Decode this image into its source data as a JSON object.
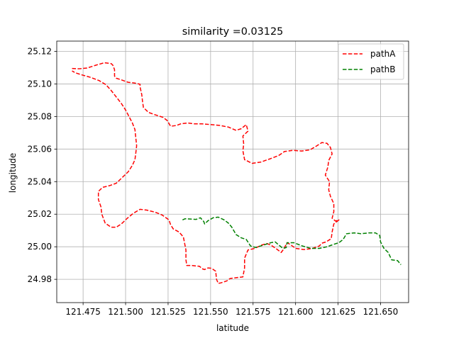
{
  "chart_data": {
    "type": "line",
    "title": "similarity =0.03125",
    "xlabel": "latitude",
    "ylabel": "longitude",
    "xlim": [
      121.4595,
      121.6665
    ],
    "ylim": [
      24.9657,
      25.1263
    ],
    "x_ticks": [
      121.475,
      121.5,
      121.525,
      121.55,
      121.575,
      121.6,
      121.625,
      121.65
    ],
    "x_tick_labels": [
      "121.475",
      "121.500",
      "121.525",
      "121.550",
      "121.575",
      "121.600",
      "121.625",
      "121.650"
    ],
    "y_ticks": [
      24.98,
      25.0,
      25.02,
      25.04,
      25.06,
      25.08,
      25.1,
      25.12
    ],
    "y_tick_labels": [
      "24.98",
      "25.00",
      "25.02",
      "25.04",
      "25.06",
      "25.08",
      "25.10",
      "25.12"
    ],
    "grid": true,
    "legend_position": "upper right",
    "series": [
      {
        "name": "pathA",
        "color": "#ff0000",
        "style": "dashed",
        "points": [
          [
            121.4685,
            25.1095
          ],
          [
            121.4725,
            25.1093
          ],
          [
            121.4775,
            25.1098
          ],
          [
            121.4825,
            25.1115
          ],
          [
            121.4875,
            25.113
          ],
          [
            121.4915,
            25.1125
          ],
          [
            121.4925,
            25.1115
          ],
          [
            121.4935,
            25.1088
          ],
          [
            121.4935,
            25.1048
          ],
          [
            121.4945,
            25.1035
          ],
          [
            121.4975,
            25.1025
          ],
          [
            121.5015,
            25.101
          ],
          [
            121.5055,
            25.1005
          ],
          [
            121.5085,
            25.0998
          ],
          [
            121.5085,
            25.0982
          ],
          [
            121.5095,
            25.0935
          ],
          [
            121.51,
            25.089
          ],
          [
            121.5105,
            25.0855
          ],
          [
            121.5135,
            25.0825
          ],
          [
            121.5175,
            25.081
          ],
          [
            121.522,
            25.0795
          ],
          [
            121.5245,
            25.0775
          ],
          [
            121.5265,
            25.074
          ],
          [
            121.53,
            25.0745
          ],
          [
            121.5325,
            25.0755
          ],
          [
            121.5365,
            25.076
          ],
          [
            121.5405,
            25.0755
          ],
          [
            121.545,
            25.0755
          ],
          [
            121.5505,
            25.075
          ],
          [
            121.5555,
            25.0745
          ],
          [
            121.5605,
            25.0735
          ],
          [
            121.565,
            25.0715
          ],
          [
            121.568,
            25.0725
          ],
          [
            121.571,
            25.075
          ],
          [
            121.572,
            25.071
          ],
          [
            121.569,
            25.068
          ],
          [
            121.5695,
            25.063
          ],
          [
            121.569,
            25.059
          ],
          [
            121.57,
            25.0535
          ],
          [
            121.5745,
            25.0512
          ],
          [
            121.5795,
            25.052
          ],
          [
            121.585,
            25.054
          ],
          [
            121.59,
            25.056
          ],
          [
            121.5935,
            25.0585
          ],
          [
            121.5985,
            25.0592
          ],
          [
            121.6035,
            25.0588
          ],
          [
            121.6085,
            25.0595
          ],
          [
            121.6125,
            25.062
          ],
          [
            121.6155,
            25.064
          ],
          [
            121.6185,
            25.0635
          ],
          [
            121.6205,
            25.061
          ],
          [
            121.6215,
            25.057
          ],
          [
            121.6195,
            25.053
          ],
          [
            121.619,
            25.049
          ],
          [
            121.6175,
            25.044
          ],
          [
            121.62,
            25.04
          ],
          [
            121.6195,
            25.035
          ],
          [
            121.6205,
            25.031
          ],
          [
            121.6225,
            25.0265
          ],
          [
            121.6225,
            25.0215
          ],
          [
            121.6215,
            25.0175
          ],
          [
            121.6235,
            25.0158
          ],
          [
            121.6255,
            25.0165
          ],
          [
            121.6225,
            25.014
          ],
          [
            121.6215,
            25.009
          ],
          [
            121.621,
            25.005
          ],
          [
            121.618,
            25.003
          ],
          [
            121.6155,
            25.0022
          ],
          [
            121.614,
            25.0005
          ],
          [
            121.61,
            24.999
          ],
          [
            121.605,
            24.9983
          ],
          [
            121.6,
            24.999
          ],
          [
            121.597,
            25.0013
          ],
          [
            121.595,
            25.0025
          ],
          [
            121.593,
            24.9985
          ],
          [
            121.5915,
            24.9965
          ],
          [
            121.589,
            24.9985
          ],
          [
            121.5855,
            25.001
          ],
          [
            121.583,
            25.002
          ],
          [
            121.58,
            25.001
          ],
          [
            121.576,
            24.999
          ],
          [
            121.572,
            24.998
          ],
          [
            121.57,
            24.993
          ],
          [
            121.57,
            24.987
          ],
          [
            121.569,
            24.9815
          ],
          [
            121.565,
            24.981
          ],
          [
            121.5615,
            24.9805
          ],
          [
            121.5595,
            24.979
          ],
          [
            121.556,
            24.9778
          ],
          [
            121.5545,
            24.9775
          ],
          [
            121.5535,
            24.98
          ],
          [
            121.553,
            24.985
          ],
          [
            121.5505,
            24.9868
          ],
          [
            121.5485,
            24.987
          ],
          [
            121.5465,
            24.986
          ],
          [
            121.545,
            24.9865
          ],
          [
            121.5435,
            24.988
          ],
          [
            121.539,
            24.9885
          ],
          [
            121.536,
            24.9885
          ],
          [
            121.5355,
            24.992
          ],
          [
            121.5355,
            24.998
          ],
          [
            121.534,
            25.006
          ],
          [
            121.5315,
            25.009
          ],
          [
            121.528,
            25.011
          ],
          [
            121.5265,
            25.0135
          ],
          [
            121.5255,
            25.0165
          ],
          [
            121.5215,
            25.0195
          ],
          [
            121.5175,
            25.0212
          ],
          [
            121.5125,
            25.0225
          ],
          [
            121.5085,
            25.023
          ],
          [
            121.5045,
            25.0205
          ],
          [
            121.501,
            25.0175
          ],
          [
            121.4975,
            25.014
          ],
          [
            121.4945,
            25.012
          ],
          [
            121.4915,
            25.012
          ],
          [
            121.488,
            25.0145
          ],
          [
            121.486,
            25.02
          ],
          [
            121.4855,
            25.0245
          ],
          [
            121.484,
            25.029
          ],
          [
            121.484,
            25.034
          ],
          [
            121.4865,
            25.0365
          ],
          [
            121.4905,
            25.0375
          ],
          [
            121.4945,
            25.039
          ],
          [
            121.4985,
            25.043
          ],
          [
            121.5015,
            25.046
          ],
          [
            121.504,
            25.05
          ],
          [
            121.5055,
            25.0535
          ],
          [
            121.506,
            25.0575
          ],
          [
            121.5065,
            25.062
          ],
          [
            121.506,
            25.067
          ],
          [
            121.5055,
            25.072
          ],
          [
            121.504,
            25.076
          ],
          [
            121.502,
            25.08
          ],
          [
            121.5,
            25.084
          ],
          [
            121.4975,
            25.088
          ],
          [
            121.4945,
            25.092
          ],
          [
            121.4915,
            25.096
          ],
          [
            121.4885,
            25.0995
          ],
          [
            121.4845,
            25.102
          ],
          [
            121.4795,
            25.104
          ],
          [
            121.4745,
            25.1055
          ],
          [
            121.4705,
            25.1068
          ],
          [
            121.4685,
            25.108
          ]
        ]
      },
      {
        "name": "pathB",
        "color": "#008000",
        "style": "dashed",
        "points": [
          [
            121.5335,
            25.0165
          ],
          [
            121.535,
            25.0172
          ],
          [
            121.5385,
            25.017
          ],
          [
            121.5415,
            25.0168
          ],
          [
            121.544,
            25.0178
          ],
          [
            121.546,
            25.0155
          ],
          [
            121.5465,
            25.014
          ],
          [
            121.5485,
            25.016
          ],
          [
            121.5515,
            25.0178
          ],
          [
            121.5545,
            25.0182
          ],
          [
            121.558,
            25.0165
          ],
          [
            121.5605,
            25.0145
          ],
          [
            121.5625,
            25.012
          ],
          [
            121.565,
            25.0075
          ],
          [
            121.568,
            25.0055
          ],
          [
            121.571,
            25.0045
          ],
          [
            121.5735,
            25.0005
          ],
          [
            121.5765,
            24.9995
          ],
          [
            121.581,
            25.001
          ],
          [
            121.5855,
            25.0025
          ],
          [
            121.588,
            25.003
          ],
          [
            121.5925,
            24.999
          ],
          [
            121.5945,
            24.9995
          ],
          [
            121.595,
            25.0025
          ],
          [
            121.599,
            25.0025
          ],
          [
            121.604,
            25.0005
          ],
          [
            121.609,
            24.999
          ],
          [
            121.614,
            24.999
          ],
          [
            121.6185,
            25.0
          ],
          [
            121.6225,
            25.0015
          ],
          [
            121.6255,
            25.0025
          ],
          [
            121.628,
            25.0045
          ],
          [
            121.63,
            25.008
          ],
          [
            121.6345,
            25.0085
          ],
          [
            121.6385,
            25.008
          ],
          [
            121.643,
            25.0085
          ],
          [
            121.647,
            25.0085
          ],
          [
            121.6495,
            25.007
          ],
          [
            121.65,
            25.003
          ],
          [
            121.652,
            24.999
          ],
          [
            121.6545,
            24.9965
          ],
          [
            121.6565,
            24.992
          ],
          [
            121.66,
            24.9915
          ],
          [
            121.662,
            24.989
          ]
        ]
      }
    ]
  }
}
